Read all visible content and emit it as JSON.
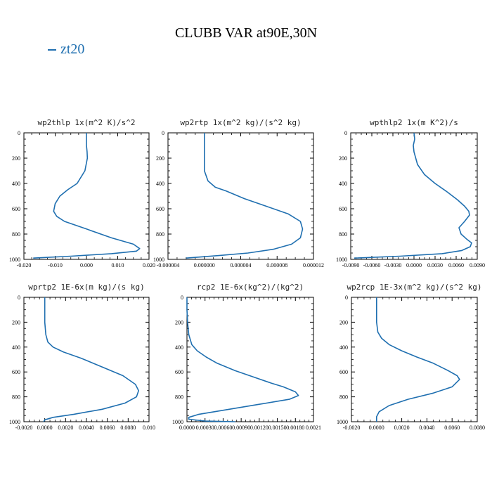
{
  "title": "CLUBB VAR at90E,30N",
  "legend": {
    "label": "zt20",
    "color": "#1f6fb0"
  },
  "chart_data": [
    {
      "type": "line",
      "title": "wp2thlp  1x(m^2 K)/s^2",
      "xlim": [
        -0.02,
        0.02
      ],
      "ylim": [
        1000,
        0
      ],
      "xticks": [
        "-0.020",
        "-0.010",
        "0.000",
        "0.010",
        "0.020"
      ],
      "yticks": [
        "0",
        "200",
        "400",
        "600",
        "800",
        "1000"
      ],
      "series": [
        {
          "x": [
            0.0,
            0.0,
            0.0002,
            0.0003,
            -0.0005,
            -0.003,
            -0.006,
            -0.0085,
            -0.01,
            -0.0105,
            -0.0095,
            -0.007,
            0.0,
            0.008,
            0.015,
            0.017,
            0.016,
            0.008,
            -0.005,
            -0.017
          ],
          "y": [
            0,
            100,
            150,
            200,
            300,
            400,
            450,
            500,
            560,
            620,
            660,
            700,
            760,
            830,
            880,
            915,
            935,
            955,
            975,
            990
          ]
        }
      ]
    },
    {
      "type": "line",
      "title": "wp2rtp  1x(m^2 kg)/(s^2 kg)",
      "xlim": [
        -5e-06,
        1.5e-05
      ],
      "ylim": [
        1000,
        0
      ],
      "xticks": [
        "-0.000004",
        "0.000000",
        "0.000004",
        "0.000008",
        "0.000012"
      ],
      "yticks": [
        "0",
        "200",
        "400",
        "600",
        "800",
        "1000"
      ],
      "series": [
        {
          "x": [
            0.0,
            0.0,
            0.0,
            5e-07,
            1.5e-06,
            3e-06,
            5.5e-06,
            8.5e-06,
            1.15e-05,
            1.32e-05,
            1.35e-05,
            1.32e-05,
            1.2e-05,
            9.5e-06,
            6e-06,
            2e-06,
            -2.5e-06
          ],
          "y": [
            0,
            200,
            300,
            380,
            430,
            460,
            520,
            580,
            640,
            700,
            760,
            830,
            880,
            920,
            950,
            970,
            990
          ]
        }
      ]
    },
    {
      "type": "line",
      "title": "wpthlp2  1x(m K^2)/s",
      "xlim": [
        -0.009,
        0.009
      ],
      "ylim": [
        1000,
        0
      ],
      "xticks": [
        "-0.0090",
        "-0.0060",
        "-0.0030",
        "0.0000",
        "0.0030",
        "0.0060",
        "0.0090"
      ],
      "yticks": [
        "0",
        "200",
        "400",
        "600",
        "800",
        "1000"
      ],
      "series": [
        {
          "x": [
            0.0,
            0.0001,
            -0.0001,
            0.0,
            0.0005,
            0.0015,
            0.003,
            0.0048,
            0.0062,
            0.0072,
            0.0078,
            0.0079,
            0.0072,
            0.0064,
            0.0067,
            0.0075,
            0.0082,
            0.008,
            0.0068,
            0.004,
            -0.002,
            -0.0085
          ],
          "y": [
            0,
            50,
            100,
            150,
            250,
            330,
            400,
            470,
            530,
            580,
            620,
            650,
            700,
            750,
            800,
            840,
            870,
            900,
            930,
            955,
            975,
            990
          ]
        }
      ]
    },
    {
      "type": "line",
      "title": "wprtp2  1E-6x(m kg)/(s kg)",
      "xlim": [
        -0.002,
        0.01
      ],
      "ylim": [
        1000,
        0
      ],
      "xticks": [
        "-0.0020",
        "0.0000",
        "0.0020",
        "0.0040",
        "0.0060",
        "0.0080",
        "0.010"
      ],
      "yticks": [
        "0",
        "200",
        "400",
        "600",
        "800",
        "1000"
      ],
      "series": [
        {
          "x": [
            0.0,
            0.0,
            0.0001,
            0.0003,
            0.0008,
            0.0018,
            0.0035,
            0.0055,
            0.0075,
            0.0087,
            0.009,
            0.0088,
            0.0077,
            0.0055,
            0.0028,
            0.0008,
            0.0,
            -0.0001
          ],
          "y": [
            0,
            200,
            300,
            360,
            400,
            440,
            490,
            560,
            630,
            700,
            750,
            800,
            850,
            900,
            940,
            965,
            985,
            1000
          ]
        }
      ]
    },
    {
      "type": "line",
      "title": "rcp2  1E-6x(kg^2)/(kg^2)",
      "xlim": [
        0.0,
        0.0021
      ],
      "ylim": [
        1000,
        0
      ],
      "xticks": [
        "0.0000",
        "0.00030",
        "0.00060",
        "0.00090",
        "0.00120",
        "0.00150",
        "0.00180",
        "0.0021"
      ],
      "yticks": [
        "0",
        "200",
        "400",
        "600",
        "800",
        "1000"
      ],
      "series": [
        {
          "x": [
            0.0,
            0.0,
            1e-05,
            3e-05,
            8e-05,
            0.00017,
            0.00032,
            0.0005,
            0.0008,
            0.0011,
            0.0014,
            0.0016,
            0.0018,
            0.00185,
            0.0017,
            0.0012,
            0.0007,
            0.0002,
            3e-05,
            3e-05,
            0.0003,
            0.0008
          ],
          "y": [
            0,
            100,
            200,
            300,
            380,
            430,
            480,
            530,
            590,
            640,
            690,
            720,
            760,
            790,
            820,
            860,
            900,
            940,
            965,
            980,
            995,
            1000
          ]
        }
      ]
    },
    {
      "type": "line",
      "title": "wp2rcp  1E-3x(m^2 kg)/(s^2 kg)",
      "xlim": [
        -0.002,
        0.008
      ],
      "ylim": [
        1000,
        0
      ],
      "xticks": [
        "-0.0020",
        "0.0000",
        "0.0020",
        "0.0040",
        "0.0060",
        "0.0080"
      ],
      "yticks": [
        "0",
        "200",
        "400",
        "600",
        "800",
        "1000"
      ],
      "series": [
        {
          "x": [
            0.0,
            0.0,
            0.0001,
            0.0004,
            0.001,
            0.002,
            0.0032,
            0.0045,
            0.0057,
            0.0064,
            0.0066,
            0.006,
            0.0045,
            0.0025,
            0.001,
            0.0002,
            0.0,
            0.0
          ],
          "y": [
            0,
            200,
            280,
            330,
            380,
            430,
            480,
            530,
            590,
            630,
            660,
            720,
            770,
            820,
            870,
            920,
            960,
            1000
          ]
        }
      ]
    }
  ]
}
